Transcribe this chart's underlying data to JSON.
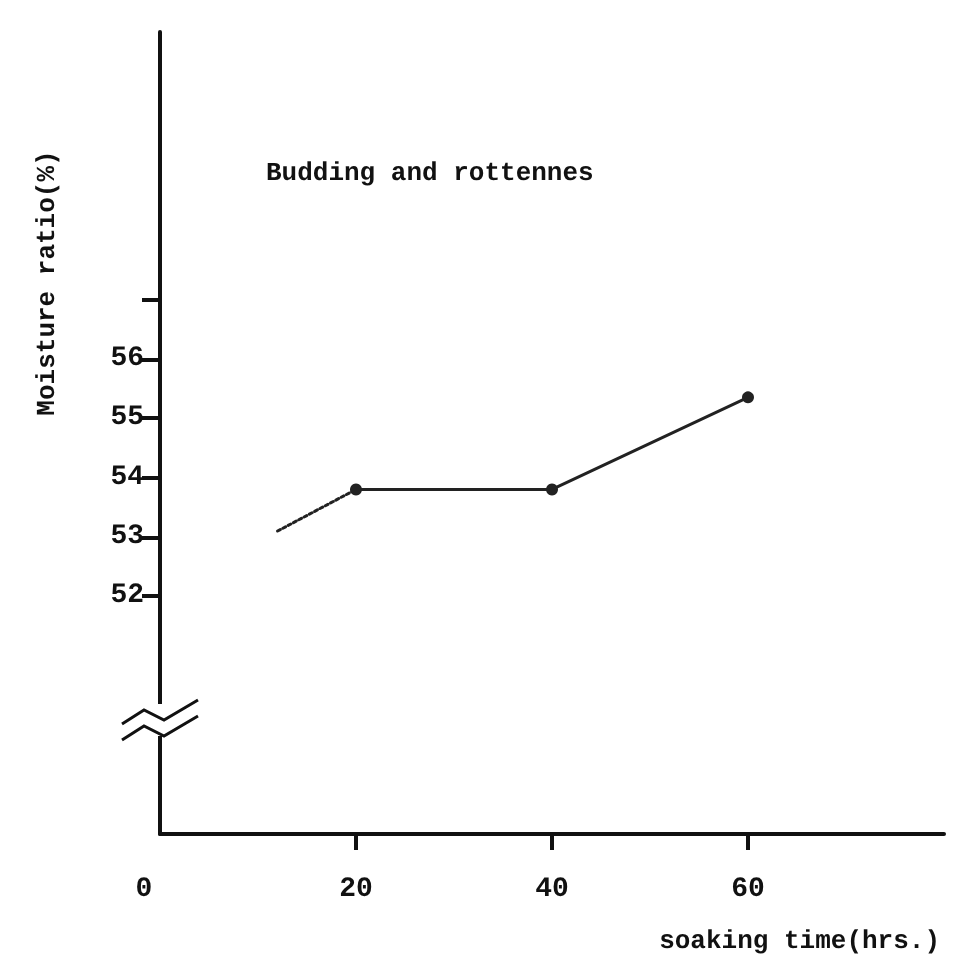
{
  "chart_data": {
    "type": "line",
    "xlabel": "soaking time(hrs.)",
    "ylabel": "Moisture ratio(%)",
    "annotations": [
      "Budding and rottennes"
    ],
    "xlim": [
      0,
      80
    ],
    "xticks": [
      0,
      20,
      40,
      60
    ],
    "ylim": [
      48,
      61.5
    ],
    "yticks": [
      52,
      53,
      54,
      55,
      56,
      {
        "value": 57,
        "label": null
      }
    ],
    "grid": false,
    "series": [
      {
        "color": "#222222",
        "x": [
          12,
          20
        ],
        "values": [
          53.1,
          53.8
        ],
        "line_style": "dotted"
      },
      {
        "color": "#222222",
        "x": [
          20,
          40,
          60
        ],
        "values": [
          53.8,
          53.8,
          55.35
        ],
        "line_style": "solid",
        "marker": "circle"
      }
    ]
  }
}
